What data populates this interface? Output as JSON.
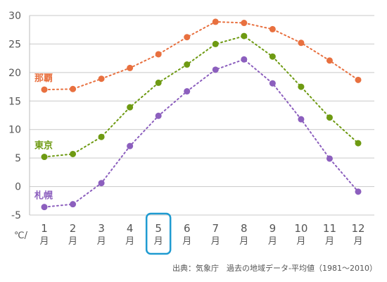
{
  "chart_data": {
    "type": "line",
    "x": [
      "1",
      "2",
      "3",
      "4",
      "5",
      "6",
      "7",
      "8",
      "9",
      "10",
      "11",
      "12"
    ],
    "x_unit": "月",
    "y_unit": "℃/",
    "ylim": [
      -5,
      30
    ],
    "yticks": [
      -5,
      0,
      5,
      10,
      15,
      20,
      25,
      30
    ],
    "grid": true,
    "highlight_index": 4,
    "highlight_color": "#1f9bd1",
    "series": [
      {
        "name": "那覇",
        "color": "#e8703f",
        "values": [
          17.0,
          17.1,
          18.9,
          20.8,
          23.2,
          26.2,
          28.9,
          28.7,
          27.6,
          25.2,
          22.1,
          18.7
        ]
      },
      {
        "name": "東京",
        "color": "#6e9a12",
        "values": [
          5.2,
          5.7,
          8.7,
          13.9,
          18.2,
          21.4,
          25.0,
          26.4,
          22.8,
          17.5,
          12.1,
          7.6
        ]
      },
      {
        "name": "札幌",
        "color": "#8c5fbe",
        "values": [
          -3.6,
          -3.1,
          0.6,
          7.1,
          12.4,
          16.7,
          20.5,
          22.3,
          18.1,
          11.8,
          4.9,
          -0.9
        ]
      }
    ]
  },
  "source": "出典：気象庁　過去の地域データ-平均値（1981～2010）"
}
